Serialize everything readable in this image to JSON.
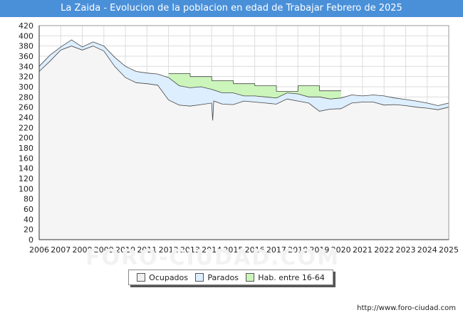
{
  "title": "La Zaida - Evolucion de la poblacion en edad de Trabajar Febrero de 2025",
  "source": "http://www.foro-ciudad.com",
  "watermark": "FORO-CIUDAD.COM",
  "colors": {
    "title_bg": "#4a90d9",
    "ocupados_fill": "#f5f5f5",
    "parados_fill": "#ddeeff",
    "hab_fill": "#ccf5bb",
    "line": "#444444"
  },
  "legend": [
    {
      "label": "Ocupados",
      "color": "#f0f0f0"
    },
    {
      "label": "Parados",
      "color": "#ddeeff"
    },
    {
      "label": "Hab. entre 16-64",
      "color": "#ccf5bb"
    }
  ],
  "chart_data": {
    "type": "area",
    "xlim": [
      2006,
      2025
    ],
    "ylim": [
      0,
      420
    ],
    "yticks": [
      0,
      20,
      40,
      60,
      80,
      100,
      120,
      140,
      160,
      180,
      200,
      220,
      240,
      260,
      280,
      300,
      320,
      340,
      360,
      380,
      400,
      420
    ],
    "xticks": [
      "2006",
      "2007",
      "2008",
      "2009",
      "2010",
      "2011",
      "2012",
      "2013",
      "2014",
      "2015",
      "2016",
      "2017",
      "2018",
      "2019",
      "2020",
      "2021",
      "2022",
      "2023",
      "2024",
      "2025"
    ],
    "grid": true,
    "legend_position": "bottom",
    "series": [
      {
        "name": "Hab. entre 16-64",
        "x": [
          2012.0,
          2013.0,
          2013.01,
          2014.0,
          2014.01,
          2015.0,
          2015.01,
          2016.0,
          2016.01,
          2017.0,
          2017.01,
          2018.0,
          2018.01,
          2019.0,
          2019.01,
          2020.0
        ],
        "values": [
          326,
          326,
          320,
          320,
          312,
          312,
          306,
          306,
          302,
          302,
          291,
          291,
          302,
          302,
          292,
          292
        ]
      },
      {
        "name": "Parados",
        "x": [
          2006.0,
          2006.5,
          2007.0,
          2007.5,
          2008.0,
          2008.5,
          2009.0,
          2009.5,
          2010.0,
          2010.5,
          2011.0,
          2011.5,
          2012.0,
          2012.5,
          2013.0,
          2013.5,
          2014.0,
          2014.5,
          2015.0,
          2015.5,
          2016.0,
          2016.5,
          2017.0,
          2017.5,
          2018.0,
          2018.5,
          2019.0,
          2019.5,
          2020.0,
          2020.5,
          2021.0,
          2021.5,
          2022.0,
          2022.5,
          2023.0,
          2023.5,
          2024.0,
          2024.5,
          2025.0
        ],
        "values": [
          340,
          362,
          378,
          392,
          378,
          388,
          380,
          358,
          340,
          330,
          327,
          325,
          318,
          302,
          298,
          300,
          295,
          288,
          288,
          282,
          282,
          280,
          278,
          288,
          286,
          280,
          280,
          276,
          278,
          284,
          282,
          284,
          282,
          278,
          275,
          272,
          268,
          263,
          268
        ]
      },
      {
        "name": "Ocupados",
        "x": [
          2006.0,
          2006.5,
          2007.0,
          2007.5,
          2008.0,
          2008.5,
          2009.0,
          2009.5,
          2010.0,
          2010.5,
          2011.0,
          2011.5,
          2012.0,
          2012.5,
          2013.0,
          2013.5,
          2014.0,
          2014.05,
          2014.1,
          2014.5,
          2015.0,
          2015.5,
          2016.0,
          2016.5,
          2017.0,
          2017.5,
          2018.0,
          2018.5,
          2019.0,
          2019.5,
          2020.0,
          2020.5,
          2021.0,
          2021.5,
          2022.0,
          2022.5,
          2023.0,
          2023.5,
          2024.0,
          2024.5,
          2025.0
        ],
        "values": [
          330,
          350,
          372,
          380,
          372,
          380,
          370,
          340,
          318,
          308,
          306,
          303,
          274,
          264,
          262,
          265,
          268,
          234,
          272,
          266,
          265,
          272,
          270,
          268,
          266,
          276,
          272,
          268,
          252,
          256,
          257,
          268,
          270,
          270,
          264,
          265,
          263,
          260,
          258,
          255,
          260
        ]
      }
    ]
  }
}
